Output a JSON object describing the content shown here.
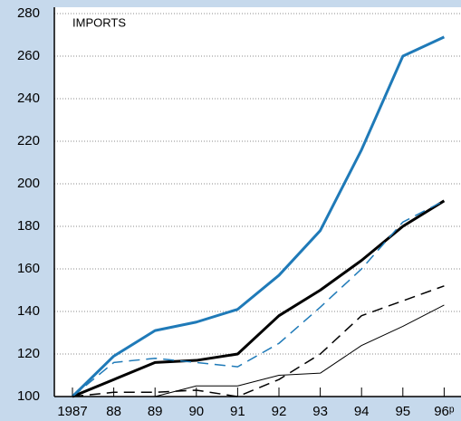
{
  "chart_data": {
    "type": "line",
    "annotation": "IMPORTS",
    "categories": [
      "1987",
      "88",
      "89",
      "90",
      "91",
      "92",
      "93",
      "94",
      "95",
      "96ᵖ"
    ],
    "series": [
      {
        "color": "#1f7ab8",
        "style": "solid",
        "width": 3,
        "values": [
          100,
          119,
          131,
          135,
          141,
          157,
          178,
          216,
          260,
          269
        ]
      },
      {
        "color": "#000000",
        "style": "solid",
        "width": 3,
        "values": [
          100,
          108,
          116,
          117,
          120,
          138,
          150,
          164,
          180,
          192
        ]
      },
      {
        "color": "#1f7ab8",
        "style": "dashed",
        "width": 1.5,
        "values": [
          100,
          116,
          118,
          116,
          114,
          125,
          142,
          160,
          182,
          192
        ]
      },
      {
        "color": "#000000",
        "style": "dashed",
        "width": 1.5,
        "values": [
          100,
          102,
          102,
          103,
          100,
          108,
          120,
          138,
          145,
          152
        ]
      },
      {
        "color": "#000000",
        "style": "solid",
        "width": 1,
        "values": [
          100,
          100,
          100,
          105,
          105,
          110,
          111,
          124,
          133,
          143
        ]
      }
    ],
    "ylim": [
      100,
      280
    ],
    "yticks": [
      100,
      120,
      140,
      160,
      180,
      200,
      220,
      240,
      260,
      280
    ],
    "grid": true
  }
}
